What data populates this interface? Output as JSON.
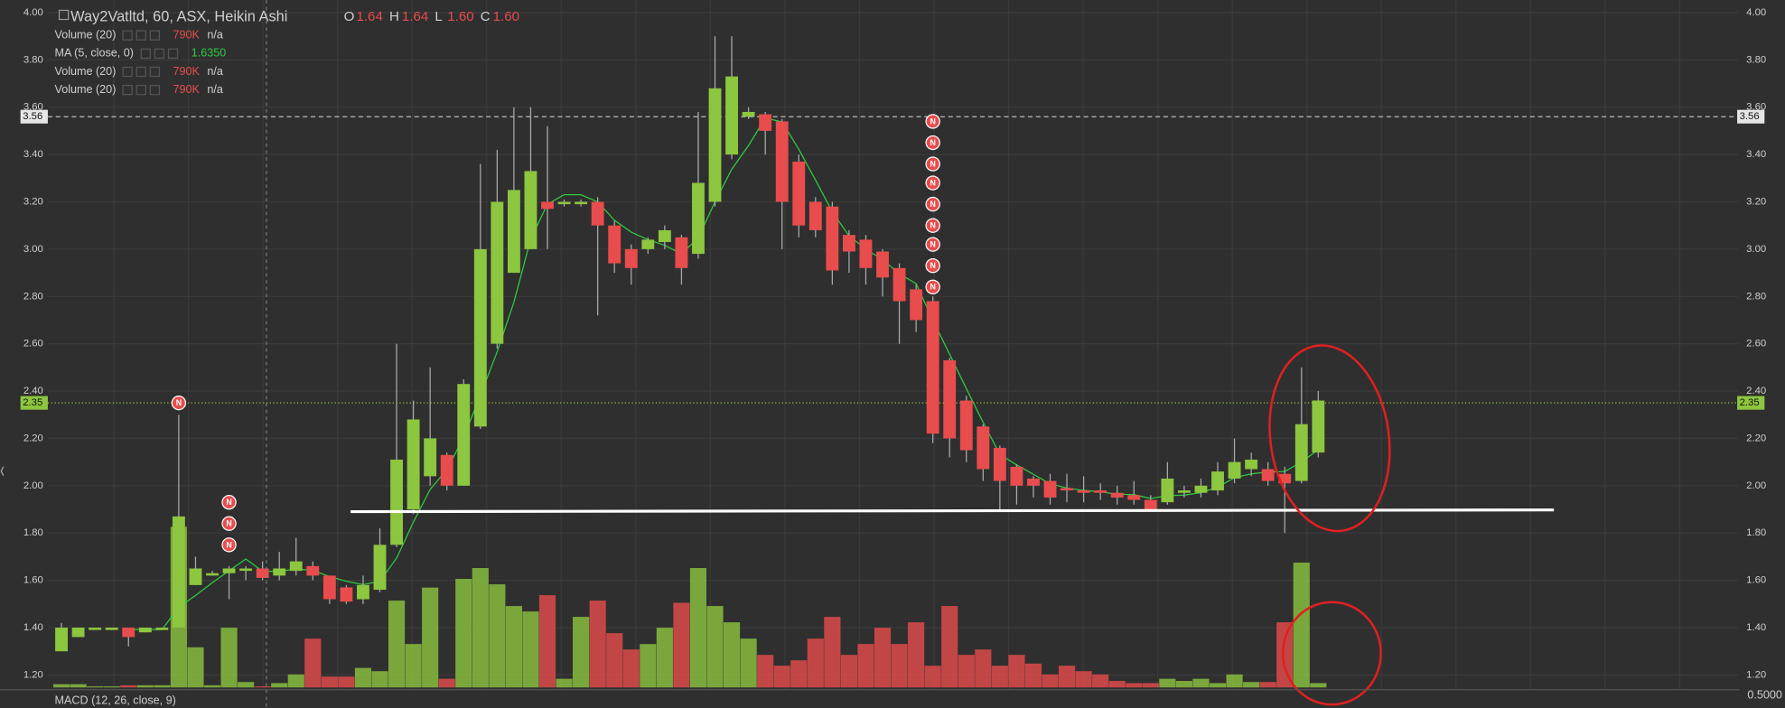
{
  "chart_data": {
    "type": "candlestick",
    "title": "Way2Vatltd, 60, ASX, Heikin Ashi",
    "ohlc_header": [
      {
        "label": "O",
        "value": "1.64"
      },
      {
        "label": "H",
        "value": "1.64"
      },
      {
        "label": "L",
        "value": "1.60"
      },
      {
        "label": "C",
        "value": "1.60"
      }
    ],
    "indicators": [
      {
        "name": "Volume (20)",
        "value": "790K",
        "extra": "n/a"
      },
      {
        "name": "MA (5, close, 0)",
        "value": "1.6350"
      },
      {
        "name": "Volume (20)",
        "value": "790K",
        "extra": "n/a"
      },
      {
        "name": "Volume (20)",
        "value": "790K",
        "extra": "n/a"
      }
    ],
    "macd_label": "MACD (12, 26, close, 9)",
    "ylim": [
      1.2,
      4.0
    ],
    "yticks": [
      {
        "value": 1.2,
        "label": "1.20"
      },
      {
        "value": 1.4,
        "label": "1.40"
      },
      {
        "value": 1.6,
        "label": "1.60"
      },
      {
        "value": 1.8,
        "label": "1.80"
      },
      {
        "value": 2.0,
        "label": "2.00"
      },
      {
        "value": 2.2,
        "label": "2.20"
      },
      {
        "value": 2.4,
        "label": "2.40"
      },
      {
        "value": 2.6,
        "label": "2.60"
      },
      {
        "value": 2.8,
        "label": "2.80"
      },
      {
        "value": 3.0,
        "label": "3.00"
      },
      {
        "value": 3.2,
        "label": "3.20"
      },
      {
        "value": 3.4,
        "label": "3.40"
      },
      {
        "value": 3.6,
        "label": "3.60"
      },
      {
        "value": 3.8,
        "label": "3.80"
      },
      {
        "value": 4.0,
        "label": "4.00"
      }
    ],
    "macd_axis_label": "0.5000",
    "crosshair_price": {
      "value": 3.56,
      "label": "3.56"
    },
    "last_price": {
      "value": 2.35,
      "label": "2.35"
    },
    "up_color": "#8dc63f",
    "down_color": "#e84c4c",
    "ma_color": "#2ecc40",
    "grid": true,
    "open": [
      1.3,
      1.36,
      1.39,
      1.39,
      1.4,
      1.38,
      1.39,
      1.4,
      1.58,
      1.62,
      1.63,
      1.64,
      1.65,
      1.62,
      1.64,
      1.66,
      1.62,
      1.57,
      1.52,
      1.56,
      1.75,
      1.9,
      2.04,
      2.13,
      2.0,
      2.25,
      2.6,
      2.9,
      3.0,
      3.2,
      3.19,
      3.19,
      3.2,
      3.1,
      3.0,
      3.0,
      3.03,
      3.05,
      2.98,
      3.2,
      3.4,
      3.56,
      3.57,
      3.54,
      3.37,
      3.2,
      3.18,
      3.06,
      3.04,
      2.99,
      2.92,
      2.83,
      2.78,
      2.53,
      2.36,
      2.25,
      2.16,
      2.08,
      2.03,
      2.02,
      1.99,
      1.98,
      1.98,
      1.97,
      1.96,
      1.94,
      1.93,
      1.97,
      1.97,
      1.98,
      2.03,
      2.07,
      2.07,
      2.05,
      2.02,
      2.14
    ],
    "close": [
      1.4,
      1.4,
      1.4,
      1.4,
      1.36,
      1.4,
      1.4,
      1.87,
      1.65,
      1.63,
      1.65,
      1.65,
      1.61,
      1.65,
      1.68,
      1.62,
      1.52,
      1.51,
      1.58,
      1.75,
      2.11,
      2.28,
      2.2,
      2.0,
      2.43,
      3.0,
      3.2,
      3.25,
      3.33,
      3.17,
      3.2,
      3.2,
      3.1,
      2.94,
      2.92,
      3.04,
      3.08,
      2.92,
      3.28,
      3.68,
      3.73,
      3.58,
      3.5,
      3.2,
      3.1,
      3.08,
      2.91,
      2.99,
      2.92,
      2.88,
      2.78,
      2.7,
      2.22,
      2.2,
      2.15,
      2.07,
      2.02,
      2.0,
      2.0,
      1.95,
      1.98,
      1.97,
      1.97,
      1.95,
      1.94,
      1.9,
      2.03,
      1.98,
      2.0,
      2.06,
      2.1,
      2.11,
      2.02,
      2.01,
      2.26,
      2.36
    ],
    "high": [
      1.42,
      1.4,
      1.4,
      1.4,
      1.4,
      1.4,
      1.4,
      2.3,
      1.7,
      1.64,
      1.66,
      1.66,
      1.68,
      1.72,
      1.78,
      1.68,
      1.62,
      1.58,
      1.62,
      1.82,
      2.6,
      2.36,
      2.5,
      2.14,
      2.45,
      3.36,
      3.42,
      3.6,
      3.6,
      3.52,
      3.21,
      3.21,
      3.22,
      3.12,
      3.02,
      3.05,
      3.1,
      3.06,
      3.58,
      3.9,
      3.9,
      3.6,
      3.58,
      3.55,
      3.4,
      3.22,
      3.2,
      3.08,
      3.06,
      3.0,
      2.94,
      2.85,
      2.8,
      2.54,
      2.38,
      2.26,
      2.17,
      2.09,
      2.04,
      2.05,
      2.05,
      2.04,
      2.01,
      2.0,
      2.02,
      1.96,
      2.1,
      2.0,
      2.03,
      2.1,
      2.2,
      2.14,
      2.1,
      2.08,
      2.5,
      2.4
    ],
    "low": [
      1.3,
      1.36,
      1.39,
      1.39,
      1.32,
      1.38,
      1.39,
      1.4,
      1.58,
      1.62,
      1.52,
      1.6,
      1.6,
      1.6,
      1.62,
      1.6,
      1.5,
      1.5,
      1.5,
      1.55,
      1.74,
      1.88,
      2.0,
      1.98,
      2.0,
      2.24,
      2.58,
      2.9,
      3.0,
      3.0,
      3.18,
      3.18,
      2.72,
      2.9,
      2.85,
      2.98,
      3.0,
      2.85,
      2.96,
      3.18,
      3.38,
      3.55,
      3.4,
      3.0,
      3.05,
      3.05,
      2.85,
      2.9,
      2.85,
      2.8,
      2.6,
      2.65,
      2.18,
      2.12,
      2.1,
      2.02,
      1.9,
      1.92,
      1.95,
      1.92,
      1.93,
      1.93,
      1.94,
      1.92,
      1.92,
      1.9,
      1.92,
      1.95,
      1.95,
      1.96,
      2.01,
      2.04,
      2.0,
      1.8,
      2.01,
      2.12
    ],
    "volume": [
      3,
      3,
      1,
      1,
      2,
      2,
      2,
      148,
      37,
      2,
      55,
      5,
      1,
      4,
      12,
      45,
      10,
      10,
      18,
      15,
      80,
      40,
      92,
      8,
      100,
      110,
      95,
      75,
      70,
      85,
      8,
      65,
      80,
      50,
      35,
      40,
      55,
      78,
      110,
      75,
      60,
      45,
      30,
      20,
      25,
      45,
      65,
      30,
      40,
      55,
      40,
      60,
      20,
      75,
      30,
      35,
      20,
      30,
      22,
      12,
      20,
      15,
      12,
      6,
      4,
      4,
      8,
      6,
      8,
      4,
      12,
      5,
      5,
      60,
      115,
      4
    ],
    "volume_ylim": [
      0,
      130
    ],
    "news_label": "N",
    "news": [
      {
        "candle": 7,
        "price": 2.35
      },
      {
        "candle": 10,
        "price": 1.93
      },
      {
        "candle": 10,
        "price": 1.84
      },
      {
        "candle": 10,
        "price": 1.75
      },
      {
        "candle": 52,
        "price": 3.54
      },
      {
        "candle": 52,
        "price": 3.45
      },
      {
        "candle": 52,
        "price": 3.36
      },
      {
        "candle": 52,
        "price": 3.28
      },
      {
        "candle": 52,
        "price": 3.19
      },
      {
        "candle": 52,
        "price": 3.1
      },
      {
        "candle": 52,
        "price": 3.02
      },
      {
        "candle": 52,
        "price": 2.93
      },
      {
        "candle": 52,
        "price": 2.84
      }
    ]
  }
}
